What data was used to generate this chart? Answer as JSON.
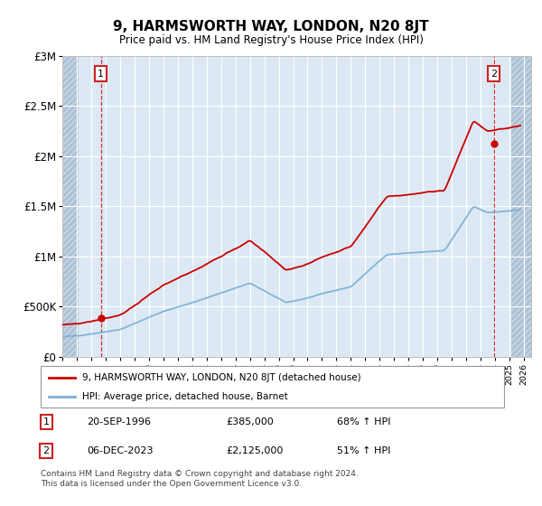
{
  "title": "9, HARMSWORTH WAY, LONDON, N20 8JT",
  "subtitle": "Price paid vs. HM Land Registry's House Price Index (HPI)",
  "ylim": [
    0,
    3000000
  ],
  "yticks": [
    0,
    500000,
    1000000,
    1500000,
    2000000,
    2500000,
    3000000
  ],
  "ytick_labels": [
    "£0",
    "£500K",
    "£1M",
    "£1.5M",
    "£2M",
    "£2.5M",
    "£3M"
  ],
  "xlim_start": 1994.0,
  "xlim_end": 2026.5,
  "xticks": [
    1994,
    1995,
    1996,
    1997,
    1998,
    1999,
    2000,
    2001,
    2002,
    2003,
    2004,
    2005,
    2006,
    2007,
    2008,
    2009,
    2010,
    2011,
    2012,
    2013,
    2014,
    2015,
    2016,
    2017,
    2018,
    2019,
    2020,
    2021,
    2022,
    2023,
    2024,
    2025,
    2026
  ],
  "hpi_color": "#7aafd4",
  "price_color": "#cc0000",
  "grid_color": "#c8d8e8",
  "plot_bg_color": "#dce9f5",
  "marker1_date": 1996.72,
  "marker1_price": 385000,
  "marker2_date": 2023.92,
  "marker2_price": 2125000,
  "legend_label1": "9, HARMSWORTH WAY, LONDON, N20 8JT (detached house)",
  "legend_label2": "HPI: Average price, detached house, Barnet",
  "table_row1": [
    "1",
    "20-SEP-1996",
    "£385,000",
    "68% ↑ HPI"
  ],
  "table_row2": [
    "2",
    "06-DEC-2023",
    "£2,125,000",
    "51% ↑ HPI"
  ],
  "footnote": "Contains HM Land Registry data © Crown copyright and database right 2024.\nThis data is licensed under the Open Government Licence v3.0."
}
